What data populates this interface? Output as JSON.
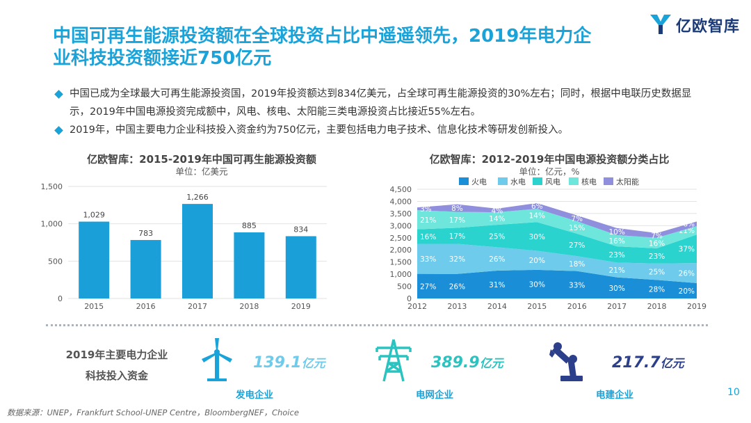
{
  "header": {
    "logo_text": "亿欧智库",
    "title": "中国可再生能源投资额在全球投资占比中遥遥领先，2019年电力企业科技投资额接近750亿元"
  },
  "bullets": [
    "中国已成为全球最大可再生能源投资国，2019年投资额达到834亿美元，占全球可再生能源投资的30%左右；同时，根据中电联历史数据显示，2019年中国电源投资完成额中，风电、核电、太阳能三类电源投资占比接近55%左右。",
    "2019年，中国主要电力企业科技投入资金约为750亿元，主要包括电力电子技术、信息化技术等研发创新投入。"
  ],
  "chart1": {
    "title": "亿欧智库：2015-2019年中国可再生能源投资额",
    "unit": "单位：亿美元"
  },
  "chart2": {
    "title": "亿欧智库：2012-2019年中国电源投资额分类占比",
    "unit": "单位：亿元，%"
  },
  "chart_data": [
    {
      "type": "bar",
      "title": "亿欧智库：2015-2019年中国可再生能源投资额",
      "categories": [
        "2015",
        "2016",
        "2017",
        "2018",
        "2019"
      ],
      "values": [
        1029,
        783,
        1266,
        885,
        834
      ],
      "data_labels": [
        "1,029",
        "783",
        "1,266",
        "885",
        "834"
      ],
      "ylim": [
        0,
        1500
      ],
      "yticks": [
        "0",
        "500",
        "1,000",
        "1,500"
      ],
      "color": "#1a9fd8",
      "grid": true
    },
    {
      "type": "area",
      "stacked": true,
      "title": "亿欧智库：2012-2019年中国电源投资额分类占比",
      "x": [
        "2012",
        "2013",
        "2014",
        "2015",
        "2016",
        "2017",
        "2018",
        "2019"
      ],
      "totals": [
        3750,
        3880,
        3700,
        3930,
        3420,
        2900,
        2720,
        3170
      ],
      "series": [
        {
          "name": "火电",
          "color": "#1a8fd8",
          "percent": [
            27,
            26,
            31,
            30,
            33,
            30,
            28,
            20
          ]
        },
        {
          "name": "水电",
          "color": "#6fcbeb",
          "percent": [
            33,
            32,
            26,
            20,
            18,
            21,
            25,
            26
          ]
        },
        {
          "name": "风电",
          "color": "#2bd3cf",
          "percent": [
            16,
            17,
            25,
            30,
            27,
            23,
            23,
            37
          ]
        },
        {
          "name": "核电",
          "color": "#6ee6dc",
          "percent": [
            21,
            17,
            14,
            14,
            15,
            16,
            16,
            11
          ]
        },
        {
          "name": "太阳能",
          "color": "#8f8fde",
          "percent": [
            3,
            8,
            4,
            6,
            7,
            10,
            7,
            6
          ]
        }
      ],
      "ylim": [
        0,
        4500
      ],
      "yticks": [
        "0",
        "500",
        "1,000",
        "1,500",
        "2,000",
        "2,500",
        "3,000",
        "3,500",
        "4,000",
        "4,500"
      ],
      "legend": "top"
    }
  ],
  "investment": {
    "label_line1": "2019年主要电力企业",
    "label_line2": "科技投入资金",
    "items": [
      {
        "value": "139.1",
        "unit": "亿元",
        "name": "发电企业",
        "icon": "wind-turbine-icon",
        "color": "#6fcbeb"
      },
      {
        "value": "389.9",
        "unit": "亿元",
        "name": "电网企业",
        "icon": "power-tower-icon",
        "color": "#2bc3c0"
      },
      {
        "value": "217.7",
        "unit": "亿元",
        "name": "电建企业",
        "icon": "robot-arm-icon",
        "color": "#2c3f8a"
      }
    ]
  },
  "footer": {
    "page_number": "10",
    "source": "数据来源：UNEP，Frankfurt School-UNEP Centre，BloombergNEF，Choice"
  }
}
